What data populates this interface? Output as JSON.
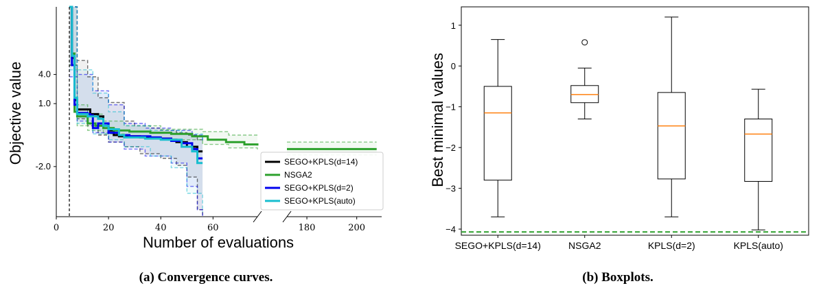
{
  "chart_data": [
    {
      "type": "line",
      "xlabel": "Number of evaluations",
      "ylabel": "Objective value",
      "caption": "(a) Convergence curves.",
      "x_ticks": [
        0,
        20,
        40,
        60,
        180,
        200
      ],
      "y_tick_labels": [
        "4.0",
        "1.0",
        "-2.0"
      ],
      "x_segments": [
        [
          0,
          77
        ],
        [
          172,
          210
        ]
      ],
      "ylim": [
        -3.5,
        5.5
      ],
      "vline_x": 5,
      "legend_position": "lower-right",
      "series": [
        {
          "name": "SEGO+KPLS(d=14)",
          "color": "#000000",
          "points": [
            [
              5,
              5.5
            ],
            [
              6,
              3.3
            ],
            [
              7,
              1.5
            ],
            [
              8,
              1.1
            ],
            [
              12,
              1.1
            ],
            [
              13,
              0.9
            ],
            [
              16,
              0.8
            ],
            [
              18,
              0.5
            ],
            [
              20,
              0.2
            ],
            [
              22,
              0.0
            ],
            [
              24,
              -0.05
            ],
            [
              32,
              -0.1
            ],
            [
              34,
              -0.12
            ],
            [
              40,
              -0.15
            ],
            [
              44,
              -0.2
            ],
            [
              46,
              -0.3
            ],
            [
              50,
              -0.5
            ],
            [
              54,
              -0.7
            ],
            [
              56,
              -0.7
            ]
          ],
          "band_upper": [
            [
              5,
              5.5
            ],
            [
              8,
              3.2
            ],
            [
              12,
              2.5
            ],
            [
              16,
              1.6
            ],
            [
              20,
              1.4
            ],
            [
              26,
              0.6
            ],
            [
              30,
              0.4
            ],
            [
              36,
              0.3
            ],
            [
              40,
              0.2
            ],
            [
              46,
              0.1
            ],
            [
              50,
              0.0
            ],
            [
              54,
              -0.2
            ],
            [
              56,
              -0.3
            ]
          ],
          "band_lower": [
            [
              5,
              3.0
            ],
            [
              8,
              0.7
            ],
            [
              12,
              0.4
            ],
            [
              16,
              0.0
            ],
            [
              20,
              -0.3
            ],
            [
              26,
              -0.5
            ],
            [
              32,
              -0.8
            ],
            [
              40,
              -1.0
            ],
            [
              46,
              -1.3
            ],
            [
              50,
              -1.8
            ],
            [
              54,
              -3.2
            ],
            [
              56,
              -3.5
            ]
          ]
        },
        {
          "name": "NSGA2",
          "color": "#2ca02c",
          "points": [
            [
              5,
              5.5
            ],
            [
              6,
              3.5
            ],
            [
              7,
              1.0
            ],
            [
              8,
              0.8
            ],
            [
              12,
              0.5
            ],
            [
              15,
              0.4
            ],
            [
              18,
              0.3
            ],
            [
              22,
              0.2
            ],
            [
              28,
              0.15
            ],
            [
              36,
              0.1
            ],
            [
              44,
              0.05
            ],
            [
              52,
              -0.05
            ],
            [
              58,
              -0.2
            ],
            [
              65,
              -0.3
            ],
            [
              72,
              -0.4
            ],
            [
              77,
              -0.45
            ],
            [
              172,
              -0.6
            ],
            [
              208,
              -0.6
            ]
          ],
          "band_upper": [
            [
              5,
              5.5
            ],
            [
              8,
              1.3
            ],
            [
              12,
              0.9
            ],
            [
              18,
              0.6
            ],
            [
              26,
              0.4
            ],
            [
              40,
              0.25
            ],
            [
              56,
              0.15
            ],
            [
              66,
              0.0
            ],
            [
              77,
              0.0
            ],
            [
              172,
              -0.3
            ],
            [
              208,
              -0.3
            ]
          ],
          "band_lower": [
            [
              5,
              3.0
            ],
            [
              8,
              0.4
            ],
            [
              12,
              0.2
            ],
            [
              18,
              0.05
            ],
            [
              26,
              -0.1
            ],
            [
              40,
              -0.2
            ],
            [
              56,
              -0.4
            ],
            [
              66,
              -0.55
            ],
            [
              77,
              -0.7
            ],
            [
              172,
              -0.85
            ],
            [
              208,
              -0.85
            ]
          ]
        },
        {
          "name": "SEGO+KPLS(d=2)",
          "color": "#0000ee",
          "points": [
            [
              5,
              5.5
            ],
            [
              6,
              3.0
            ],
            [
              7,
              1.3
            ],
            [
              8,
              0.95
            ],
            [
              12,
              0.9
            ],
            [
              13,
              0.85
            ],
            [
              14,
              0.3
            ],
            [
              16,
              0.5
            ],
            [
              20,
              0.1
            ],
            [
              24,
              0.0
            ],
            [
              28,
              -0.05
            ],
            [
              36,
              -0.1
            ],
            [
              40,
              -0.15
            ],
            [
              44,
              -0.25
            ],
            [
              48,
              -0.35
            ],
            [
              52,
              -0.6
            ],
            [
              54,
              -1.0
            ],
            [
              56,
              -1.0
            ]
          ],
          "band_upper": [
            [
              5,
              5.5
            ],
            [
              8,
              2.6
            ],
            [
              14,
              1.9
            ],
            [
              20,
              1.3
            ],
            [
              26,
              0.5
            ],
            [
              34,
              0.3
            ],
            [
              44,
              0.2
            ],
            [
              52,
              0.0
            ],
            [
              56,
              -0.2
            ]
          ],
          "band_lower": [
            [
              5,
              2.5
            ],
            [
              8,
              0.6
            ],
            [
              14,
              0.1
            ],
            [
              20,
              -0.3
            ],
            [
              26,
              -0.6
            ],
            [
              34,
              -0.9
            ],
            [
              44,
              -1.2
            ],
            [
              50,
              -2.2
            ],
            [
              54,
              -3.2
            ],
            [
              56,
              -3.5
            ]
          ]
        },
        {
          "name": "SEGO+KPLS(auto)",
          "color": "#17becf",
          "points": [
            [
              5,
              5.5
            ],
            [
              6,
              3.4
            ],
            [
              7,
              1.6
            ],
            [
              8,
              0.9
            ],
            [
              12,
              0.8
            ],
            [
              16,
              0.7
            ],
            [
              18,
              0.4
            ],
            [
              20,
              0.25
            ],
            [
              24,
              0.0
            ],
            [
              26,
              -0.1
            ],
            [
              34,
              -0.15
            ],
            [
              40,
              -0.2
            ],
            [
              48,
              -0.5
            ],
            [
              52,
              -0.7
            ],
            [
              54,
              -1.2
            ],
            [
              56,
              -1.2
            ]
          ],
          "band_upper": [
            [
              5,
              5.5
            ],
            [
              8,
              2.8
            ],
            [
              14,
              1.8
            ],
            [
              20,
              1.0
            ],
            [
              26,
              0.4
            ],
            [
              36,
              0.2
            ],
            [
              48,
              0.05
            ],
            [
              56,
              -0.3
            ]
          ],
          "band_lower": [
            [
              5,
              2.8
            ],
            [
              8,
              0.5
            ],
            [
              14,
              0.05
            ],
            [
              20,
              -0.2
            ],
            [
              26,
              -0.5
            ],
            [
              36,
              -0.9
            ],
            [
              44,
              -1.4
            ],
            [
              50,
              -2.5
            ],
            [
              56,
              -3.3
            ]
          ]
        }
      ]
    },
    {
      "type": "box",
      "ylabel": "Best minimal values",
      "caption": "(b) Boxplots.",
      "ylim": [
        -4.15,
        1.45
      ],
      "y_ticks": [
        1,
        0,
        -1,
        -2,
        -3,
        -4
      ],
      "y_tick_labels": [
        "1",
        "0",
        "−1",
        "−2",
        "−3",
        "−4"
      ],
      "reference_line": -4.07,
      "reference_color": "#2ca02c",
      "median_color": "#ff7f0e",
      "categories": [
        "SEGO+KPLS(d=14)",
        "NSGA2",
        "KPLS(d=2)",
        "KPLS(auto)"
      ],
      "boxes": [
        {
          "whisker_low": -3.7,
          "q1": -2.8,
          "median": -1.15,
          "q3": -0.5,
          "whisker_high": 0.65,
          "outliers": []
        },
        {
          "whisker_low": -1.3,
          "q1": -0.9,
          "median": -0.7,
          "q3": -0.48,
          "whisker_high": -0.05,
          "outliers": [
            0.58
          ]
        },
        {
          "whisker_low": -3.7,
          "q1": -2.77,
          "median": -1.47,
          "q3": -0.65,
          "whisker_high": 1.2,
          "outliers": []
        },
        {
          "whisker_low": -4.02,
          "q1": -2.83,
          "median": -1.67,
          "q3": -1.3,
          "whisker_high": -0.57,
          "outliers": []
        }
      ]
    }
  ]
}
